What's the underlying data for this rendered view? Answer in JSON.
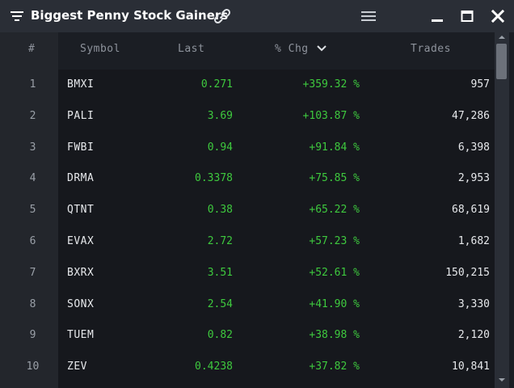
{
  "window": {
    "title": "Biggest Penny Stock Gainers",
    "icons": {
      "menu": "filter-lines-icon",
      "link": "link-chain-icon",
      "hamburger": "hamburger-menu-icon",
      "minimize": "minimize-icon",
      "maximize": "maximize-icon",
      "close": "close-icon"
    }
  },
  "table": {
    "columns": {
      "rank": "#",
      "symbol": "Symbol",
      "last": "Last",
      "chg": "% Chg",
      "trades": "Trades"
    },
    "sort_icon": "chevron-down-icon",
    "rows": [
      {
        "rank": "1",
        "symbol": "BMXI",
        "last": "0.271",
        "chg": "+359.32 %",
        "trades": "957"
      },
      {
        "rank": "2",
        "symbol": "PALI",
        "last": "3.69",
        "chg": "+103.87 %",
        "trades": "47,286"
      },
      {
        "rank": "3",
        "symbol": "FWBI",
        "last": "0.94",
        "chg": "+91.84 %",
        "trades": "6,398"
      },
      {
        "rank": "4",
        "symbol": "DRMA",
        "last": "0.3378",
        "chg": "+75.85 %",
        "trades": "2,953"
      },
      {
        "rank": "5",
        "symbol": "QTNT",
        "last": "0.38",
        "chg": "+65.22 %",
        "trades": "68,619"
      },
      {
        "rank": "6",
        "symbol": "EVAX",
        "last": "2.72",
        "chg": "+57.23 %",
        "trades": "1,682"
      },
      {
        "rank": "7",
        "symbol": "BXRX",
        "last": "3.51",
        "chg": "+52.61 %",
        "trades": "150,215"
      },
      {
        "rank": "8",
        "symbol": "SONX",
        "last": "2.54",
        "chg": "+41.90 %",
        "trades": "3,330"
      },
      {
        "rank": "9",
        "symbol": "TUEM",
        "last": "0.82",
        "chg": "+38.98 %",
        "trades": "2,120"
      },
      {
        "rank": "10",
        "symbol": "ZEV",
        "last": "0.4238",
        "chg": "+37.82 %",
        "trades": "10,841"
      }
    ]
  },
  "colors": {
    "gain": "#3ec93e",
    "text": "#e6e8eb",
    "header_text": "#8e939c",
    "titlebar": "#2a2e36",
    "background": "#1b1e24"
  }
}
